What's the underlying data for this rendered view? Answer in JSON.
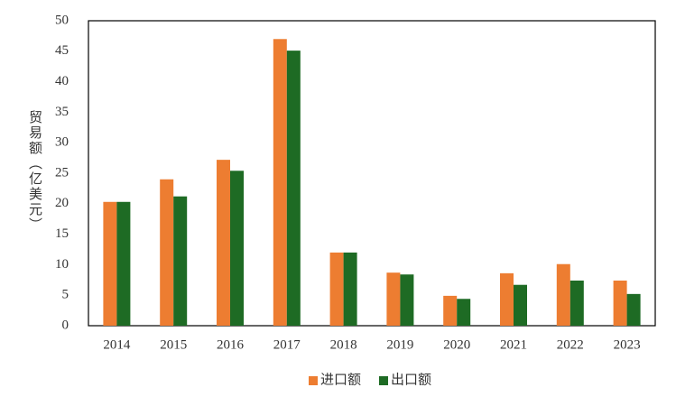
{
  "chart_data": {
    "type": "bar",
    "y_label": "贸易额（亿美元）",
    "categories": [
      "2014",
      "2015",
      "2016",
      "2017",
      "2018",
      "2019",
      "2020",
      "2021",
      "2022",
      "2023"
    ],
    "series": [
      {
        "name": "进口额",
        "color": "#ed7d31",
        "values": [
          20.3,
          24.0,
          27.2,
          47.0,
          12.0,
          8.7,
          4.9,
          8.6,
          10.1,
          7.4
        ]
      },
      {
        "name": "出口额",
        "color": "#1e6b24",
        "values": [
          20.3,
          21.2,
          25.4,
          45.1,
          12.0,
          8.4,
          4.4,
          6.7,
          7.4,
          5.2
        ]
      }
    ],
    "ylim": [
      0,
      50
    ],
    "yticks": [
      0,
      5,
      10,
      15,
      20,
      25,
      30,
      35,
      40,
      45,
      50
    ],
    "grid": false,
    "legend": "bottom"
  }
}
